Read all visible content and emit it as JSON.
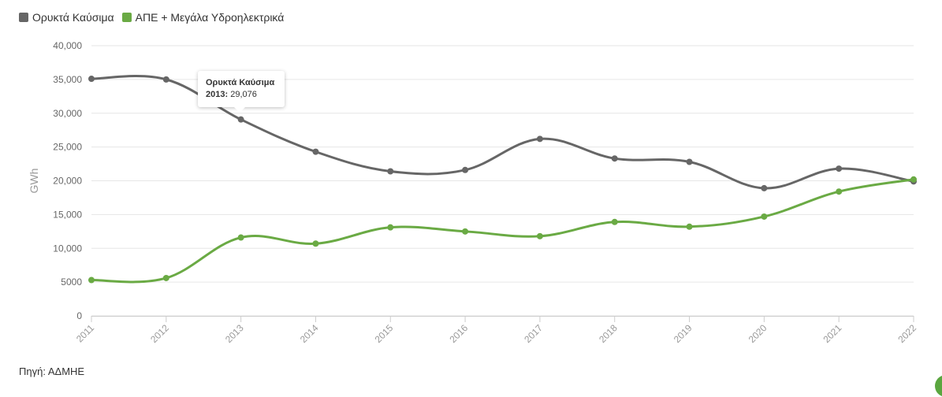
{
  "legend": {
    "items": [
      {
        "label": "Ορυκτά Καύσιμα",
        "color": "#666666"
      },
      {
        "label": "ΑΠΕ + Μεγάλα Υδροηλεκτρικά",
        "color": "#6aaa44"
      }
    ]
  },
  "tooltip": {
    "title": "Ορυκτά Καύσιμα",
    "year": "2013:",
    "value": "29,076"
  },
  "source": "Πηγή: ΑΔΜΗΕ",
  "chart_data": {
    "type": "line",
    "x": [
      "2011",
      "2012",
      "2013",
      "2014",
      "2015",
      "2016",
      "2017",
      "2018",
      "2019",
      "2020",
      "2021",
      "2022"
    ],
    "series": [
      {
        "name": "Ορυκτά Καύσιμα",
        "color": "#666666",
        "values": [
          35100,
          35000,
          29076,
          24300,
          21400,
          21600,
          26200,
          23300,
          22800,
          18900,
          21800,
          19900
        ]
      },
      {
        "name": "ΑΠΕ + Μεγάλα Υδροηλεκτρικά",
        "color": "#6aaa44",
        "values": [
          5300,
          5600,
          11600,
          10700,
          13100,
          12500,
          11800,
          13900,
          13200,
          14700,
          18400,
          20200
        ]
      }
    ],
    "ylabel": "GWh",
    "ylim": [
      0,
      40000
    ],
    "yticks": [
      "0",
      "5000",
      "10,000",
      "15,000",
      "20,000",
      "25,000",
      "30,000",
      "35,000",
      "40,000"
    ],
    "grid": true,
    "legend_position": "top-left"
  }
}
